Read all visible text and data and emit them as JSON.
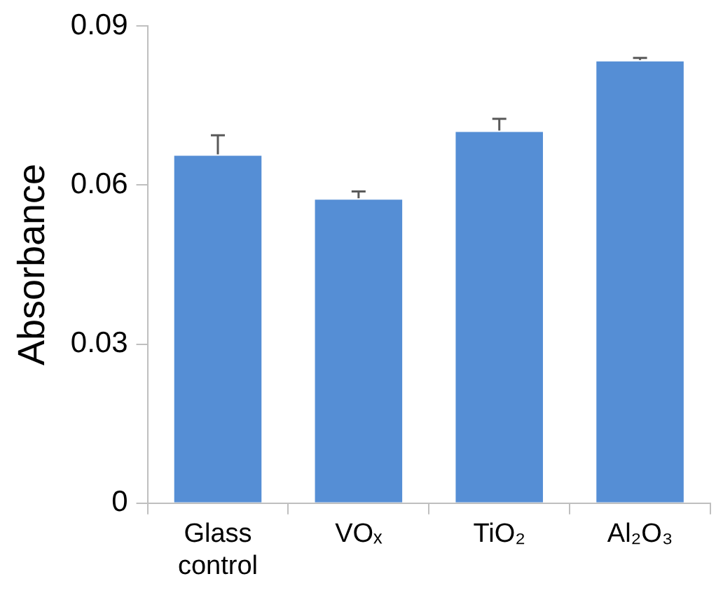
{
  "chart_data": {
    "type": "bar",
    "ylabel": "Absorbance",
    "categories": [
      "Glass control",
      "VOₓ",
      "TiO₂",
      "Al₂O₃"
    ],
    "values": [
      0.0658,
      0.0575,
      0.0703,
      0.0836
    ],
    "color": "#558ed5",
    "errors": [
      [
        0.0658,
        0.0694
      ],
      [
        0.0575,
        0.0588
      ],
      [
        0.0703,
        0.0725
      ],
      [
        0.0836,
        0.084
      ]
    ],
    "ylim": [
      0,
      0.09
    ],
    "yticks": [
      0,
      0.03,
      0.06,
      0.09
    ],
    "grid": false,
    "legend": false
  }
}
